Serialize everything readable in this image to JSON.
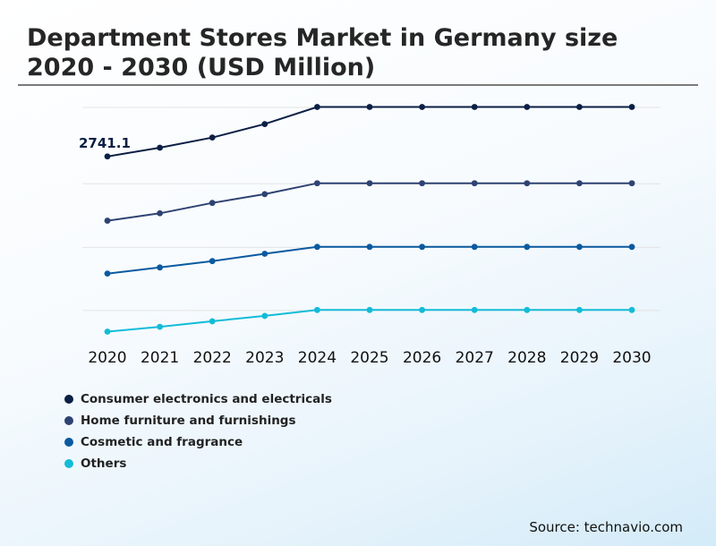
{
  "title_lines": [
    "Department Stores Market in Germany size",
    "2020 - 2030 (USD Million)"
  ],
  "source": "Source: technavio.com",
  "colors": {
    "consumer": "#0b1f44",
    "home": "#2e4372",
    "cosmetic": "#0a5aa0",
    "others": "#12bcd8",
    "grid": "#e4e4e4",
    "axis_text": "#111111",
    "annotation": "#0b1f44"
  },
  "chart_data": {
    "type": "line",
    "title": "Department Stores Market in Germany size 2020 - 2030 (USD Million)",
    "x": [
      "2020",
      "2021",
      "2022",
      "2023",
      "2024",
      "2025",
      "2026",
      "2027",
      "2028",
      "2029",
      "2030"
    ],
    "y_axis_labels": "none",
    "grid": "horizontal",
    "legend_position": "bottom-left",
    "series": [
      {
        "name": "Consumer electronics and electricals",
        "color_key": "consumer",
        "values": [
          2741.1,
          2857,
          2991,
          3169,
          3395,
          3395,
          3395,
          3395,
          3395,
          3395,
          3395
        ]
      },
      {
        "name": "Home furniture and furnishings",
        "color_key": "home",
        "values": [
          1892,
          1990,
          2127,
          2243,
          2387,
          2387,
          2387,
          2387,
          2387,
          2387,
          2387
        ]
      },
      {
        "name": "Cosmetic and fragrance",
        "color_key": "cosmetic",
        "values": [
          1193,
          1274,
          1358,
          1455,
          1546,
          1546,
          1546,
          1546,
          1546,
          1546,
          1546
        ]
      },
      {
        "name": "Others",
        "color_key": "others",
        "values": [
          426,
          490,
          563,
          634,
          712,
          712,
          712,
          712,
          712,
          712,
          712
        ]
      }
    ],
    "annotations": [
      {
        "text": "2741.1",
        "series": 0,
        "index": 0
      }
    ]
  }
}
